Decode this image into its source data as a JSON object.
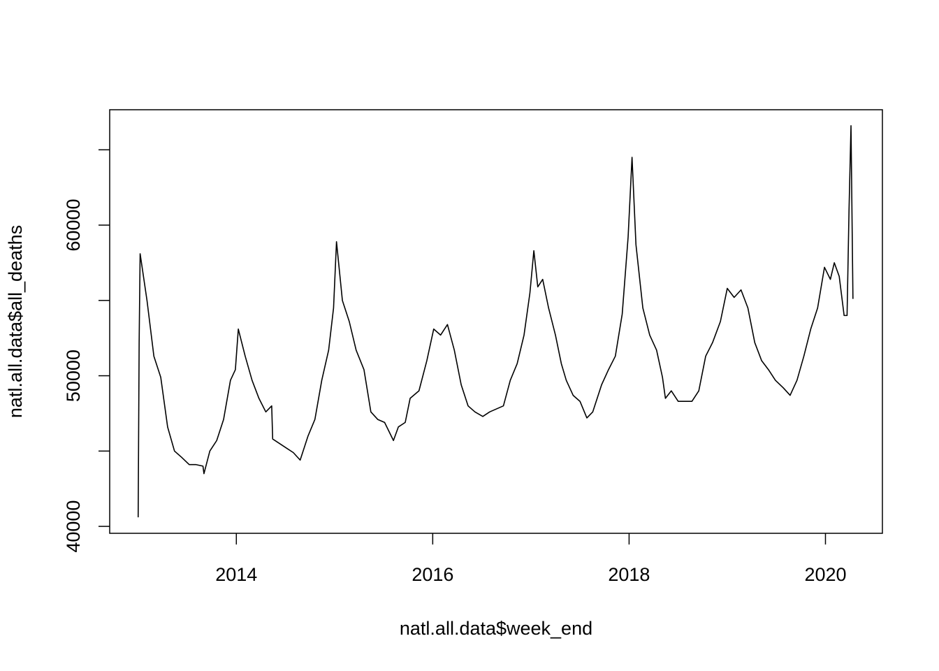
{
  "chart_data": {
    "type": "line",
    "x_label": "natl.all.data$week_end",
    "y_label": "natl.all.data$all_deaths",
    "color": "#000000",
    "x": [
      2013.0,
      2013.01,
      2013.02,
      2013.09,
      2013.16,
      2013.23,
      2013.3,
      2013.37,
      2013.44,
      2013.52,
      2013.59,
      2013.66,
      2013.67,
      2013.73,
      2013.8,
      2013.87,
      2013.94,
      2013.99,
      2014.02,
      2014.09,
      2014.16,
      2014.23,
      2014.3,
      2014.36,
      2014.37,
      2014.44,
      2014.51,
      2014.58,
      2014.65,
      2014.73,
      2014.8,
      2014.87,
      2014.94,
      2014.99,
      2015.02,
      2015.08,
      2015.15,
      2015.22,
      2015.3,
      2015.37,
      2015.44,
      2015.51,
      2015.6,
      2015.65,
      2015.72,
      2015.77,
      2015.86,
      2015.94,
      2016.01,
      2016.08,
      2016.15,
      2016.22,
      2016.29,
      2016.36,
      2016.43,
      2016.51,
      2016.58,
      2016.72,
      2016.79,
      2016.86,
      2016.93,
      2016.99,
      2017.03,
      2017.07,
      2017.12,
      2017.18,
      2017.25,
      2017.31,
      2017.36,
      2017.43,
      2017.5,
      2017.57,
      2017.63,
      2017.72,
      2017.79,
      2017.86,
      2017.93,
      2017.99,
      2018.03,
      2018.07,
      2018.14,
      2018.21,
      2018.28,
      2018.34,
      2018.37,
      2018.43,
      2018.5,
      2018.57,
      2018.64,
      2018.71,
      2018.78,
      2018.85,
      2018.93,
      2019.0,
      2019.07,
      2019.14,
      2019.21,
      2019.28,
      2019.35,
      2019.42,
      2019.49,
      2019.57,
      2019.64,
      2019.71,
      2019.78,
      2019.85,
      2019.92,
      2019.99,
      2020.05,
      2020.09,
      2020.14,
      2020.19,
      2020.22,
      2020.24,
      2020.26,
      2020.28
    ],
    "series": [
      {
        "values": [
          40600,
          52200,
          58100,
          55000,
          51300,
          49900,
          46600,
          45000,
          44600,
          44100,
          44100,
          44000,
          43500,
          45000,
          45700,
          47100,
          49700,
          50400,
          53100,
          51300,
          49700,
          48500,
          47600,
          48000,
          45800,
          45500,
          45200,
          44900,
          44400,
          46000,
          47100,
          49700,
          51700,
          54500,
          58900,
          55000,
          53600,
          51700,
          50400,
          47600,
          47100,
          46900,
          45700,
          46600,
          46900,
          48500,
          49000,
          51000,
          53100,
          52700,
          53400,
          51700,
          49400,
          48000,
          47600,
          47300,
          47600,
          48000,
          49700,
          50800,
          52700,
          55500,
          58300,
          55900,
          56400,
          54500,
          52700,
          50800,
          49700,
          48700,
          48300,
          47200,
          47600,
          49400,
          50400,
          51300,
          54100,
          59200,
          64500,
          58700,
          54500,
          52700,
          51700,
          49900,
          48500,
          49000,
          48300,
          48300,
          48300,
          49000,
          51300,
          52200,
          53600,
          55800,
          55200,
          55700,
          54500,
          52200,
          51000,
          50400,
          49700,
          49200,
          48700,
          49700,
          51300,
          53100,
          54500,
          57200,
          56400,
          57500,
          56600,
          54000,
          54000,
          61000,
          66600,
          55100
        ]
      }
    ],
    "xlim": [
      2012.71,
      2020.58
    ],
    "ylim": [
      39540,
      67660
    ],
    "xticks": [
      2014,
      2016,
      2018,
      2020
    ],
    "yticks": [
      40000,
      50000,
      60000
    ],
    "yminorticks": [
      45000,
      55000,
      65000
    ]
  }
}
